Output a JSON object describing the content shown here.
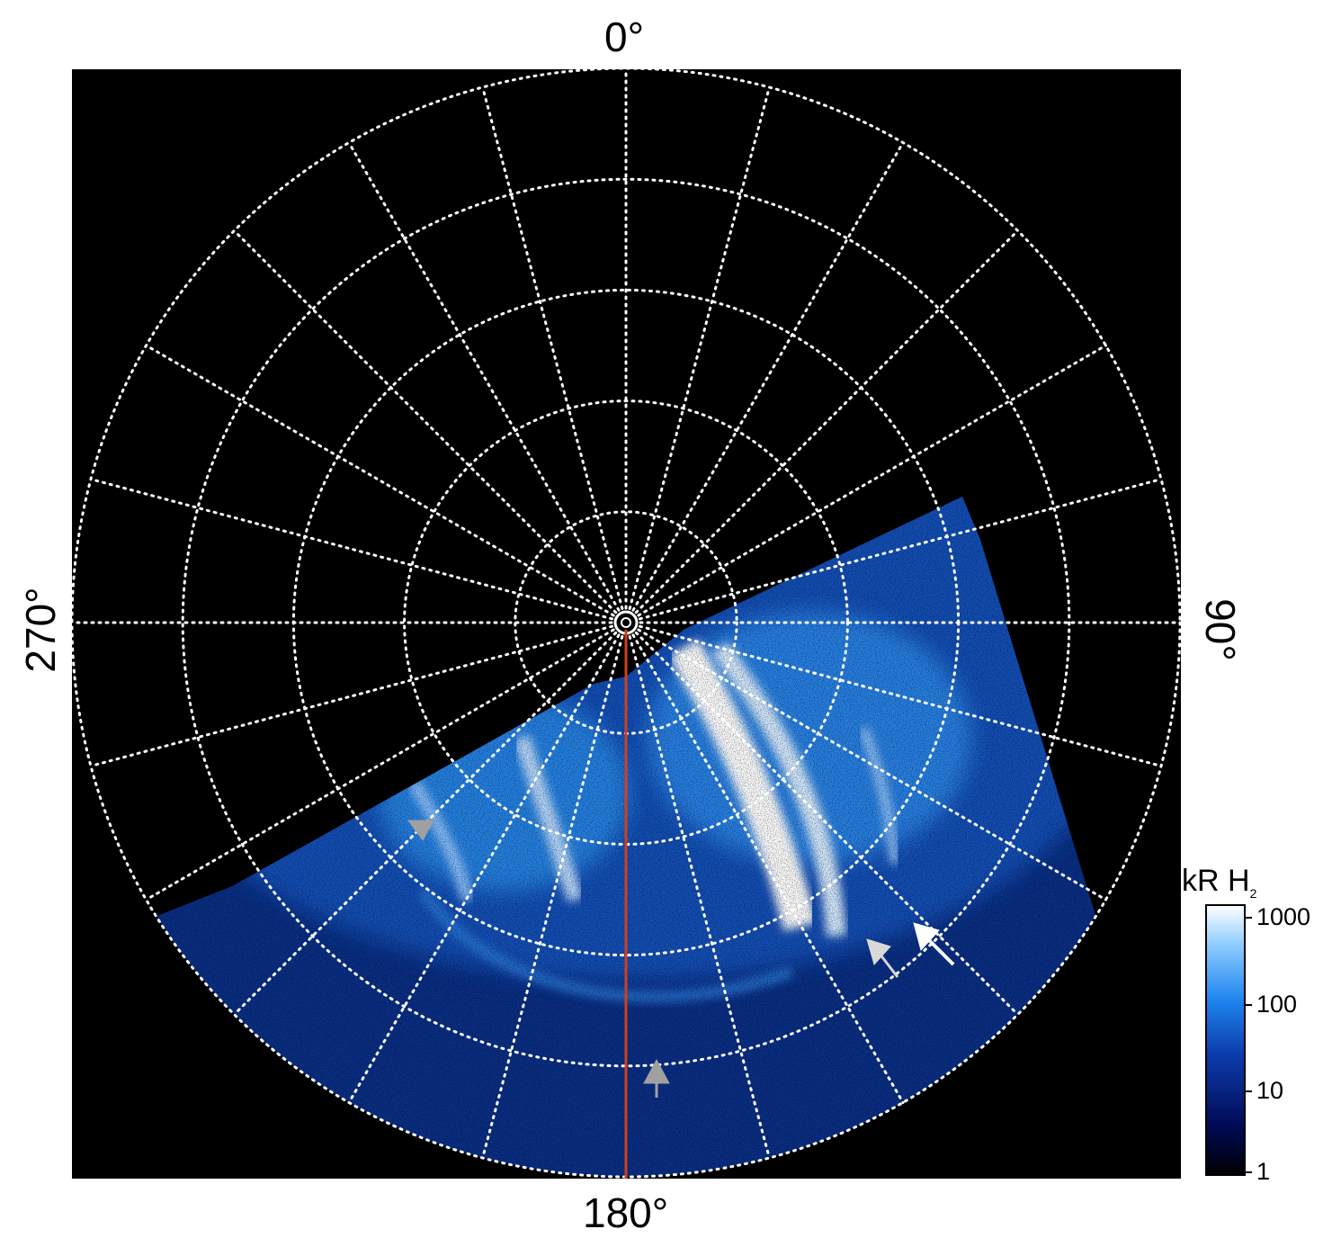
{
  "chart_data": {
    "type": "heatmap",
    "subtype": "polar-projection",
    "axis_labels": {
      "top": "0°",
      "bottom": "180°",
      "left": "270°",
      "right": "90°"
    },
    "polar_grid": {
      "ring_count": 5,
      "radial_spokes_deg": [
        0,
        15,
        30,
        45,
        60,
        75,
        90,
        105,
        120,
        135,
        150,
        165,
        180,
        195,
        210,
        225,
        240,
        255,
        270,
        285,
        300,
        315,
        330,
        345
      ],
      "style": "dotted",
      "grid": true
    },
    "colorbar": {
      "title": "kR H",
      "title_subscript": "2",
      "scale": "log",
      "range": [
        1,
        1500
      ],
      "ticks": [
        "1000",
        "100",
        "10",
        "1"
      ],
      "tick_values": [
        1000,
        100,
        10,
        1
      ],
      "placement": "right"
    },
    "annotations": {
      "meridian_line_color": "#d0401b",
      "meridian_deg": 180,
      "arrow_colors": [
        "#a0a0a0",
        "#a0a0a0",
        "#d8d8d8",
        "#ffffff"
      ]
    },
    "colors": {
      "background": "#000000",
      "grid": "#ffffff",
      "emission_low": "#000033",
      "emission_mid": "#1a6fd6",
      "emission_high": "#ffffff"
    }
  }
}
